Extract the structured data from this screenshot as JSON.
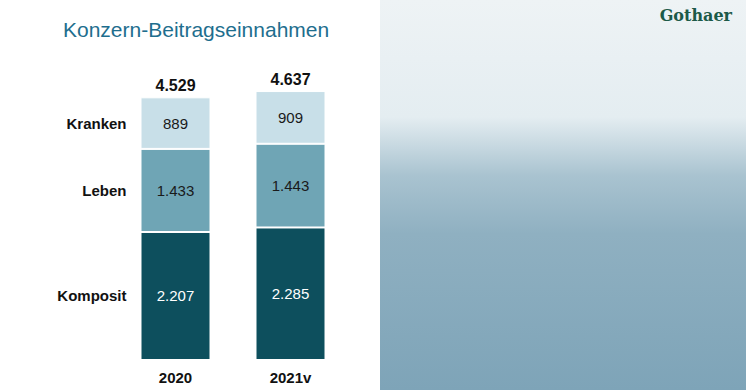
{
  "chart_data": {
    "type": "bar",
    "title": "Konzern-Beitragseinnahmen",
    "categories": [
      "2020",
      "2021v"
    ],
    "series": [
      {
        "name": "Komposit",
        "color": "#0d4f5d",
        "values": [
          2207,
          2285
        ],
        "value_labels": [
          "2.207",
          "2.285"
        ]
      },
      {
        "name": "Leben",
        "color": "#6fa5b5",
        "values": [
          1433,
          1443
        ],
        "value_labels": [
          "1.433",
          "1.443"
        ]
      },
      {
        "name": "Kranken",
        "color": "#c8dfe8",
        "values": [
          889,
          909
        ]
      }
    ],
    "totals": [
      4529,
      4637
    ],
    "total_labels": [
      "4.529",
      "4.637"
    ],
    "stacked": true,
    "data_labels": true,
    "tick_labels": "x",
    "grid": false,
    "legend": "left"
  },
  "logo": "Gothaer"
}
